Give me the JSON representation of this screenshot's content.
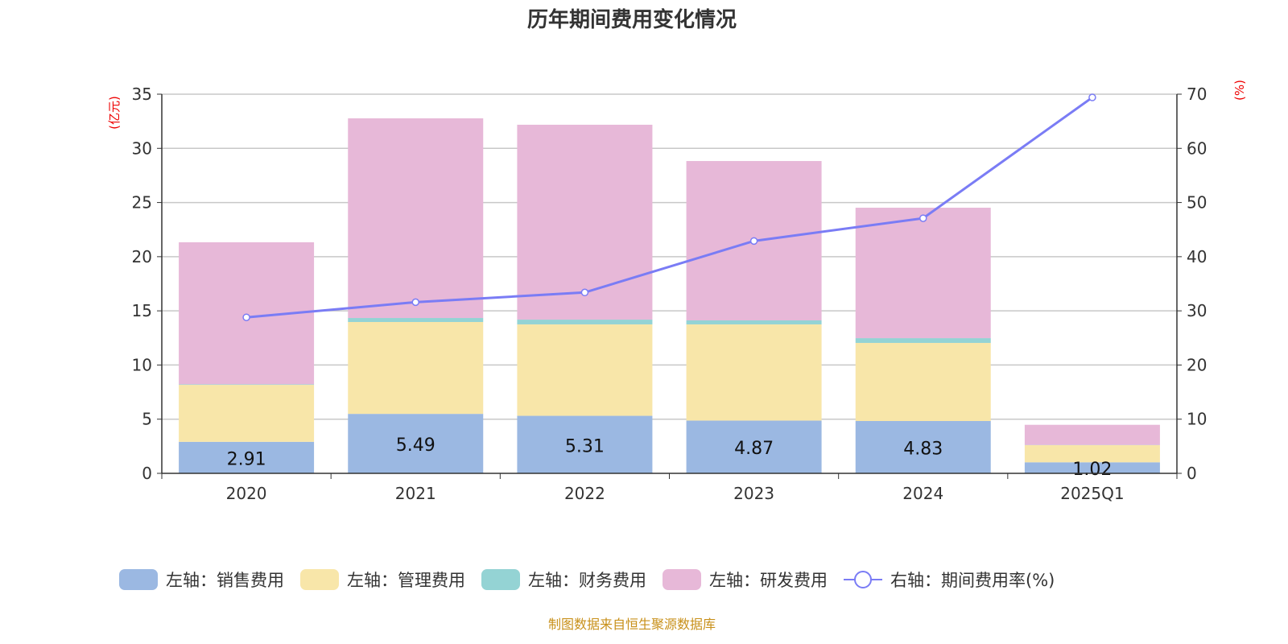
{
  "title": "历年期间费用变化情况",
  "footer": "制图数据来自恒生聚源数据库",
  "chart_data": {
    "type": "bar",
    "stacked": true,
    "title": "历年期间费用变化情况",
    "categories": [
      "2020",
      "2021",
      "2022",
      "2023",
      "2024",
      "2025Q1"
    ],
    "left_axis": {
      "label": "(亿元)",
      "ylim": [
        0,
        35
      ],
      "ticks": [
        0,
        5,
        10,
        15,
        20,
        25,
        30,
        35
      ]
    },
    "right_axis": {
      "label": "(%)",
      "ylim": [
        0,
        70
      ],
      "ticks": [
        0,
        10,
        20,
        30,
        40,
        50,
        60,
        70
      ]
    },
    "grid": true,
    "legend_position": "bottom",
    "series": [
      {
        "name": "左轴：销售费用",
        "axis": "left",
        "type": "bar",
        "color": "#9bb8e2",
        "values": [
          2.91,
          5.49,
          5.31,
          4.87,
          4.83,
          1.02
        ],
        "labels": [
          "2.91",
          "5.49",
          "5.31",
          "4.87",
          "4.83",
          "1.02"
        ]
      },
      {
        "name": "左轴：管理费用",
        "axis": "left",
        "type": "bar",
        "color": "#f8e6a9",
        "values": [
          5.26,
          8.48,
          8.44,
          8.88,
          7.21,
          1.58
        ]
      },
      {
        "name": "左轴：财务费用",
        "axis": "left",
        "type": "bar",
        "color": "#94d3d4",
        "values": [
          0.05,
          0.37,
          0.44,
          0.37,
          0.44,
          0.02
        ]
      },
      {
        "name": "左轴：研发费用",
        "axis": "left",
        "type": "bar",
        "color": "#e7b8d8",
        "values": [
          13.11,
          18.43,
          17.99,
          14.71,
          12.04,
          1.86
        ]
      },
      {
        "name": "右轴：期间费用率(%)",
        "axis": "right",
        "type": "line",
        "color": "#7a7cf5",
        "values": [
          28.8,
          31.6,
          33.4,
          42.9,
          47.1,
          69.4
        ]
      }
    ]
  }
}
